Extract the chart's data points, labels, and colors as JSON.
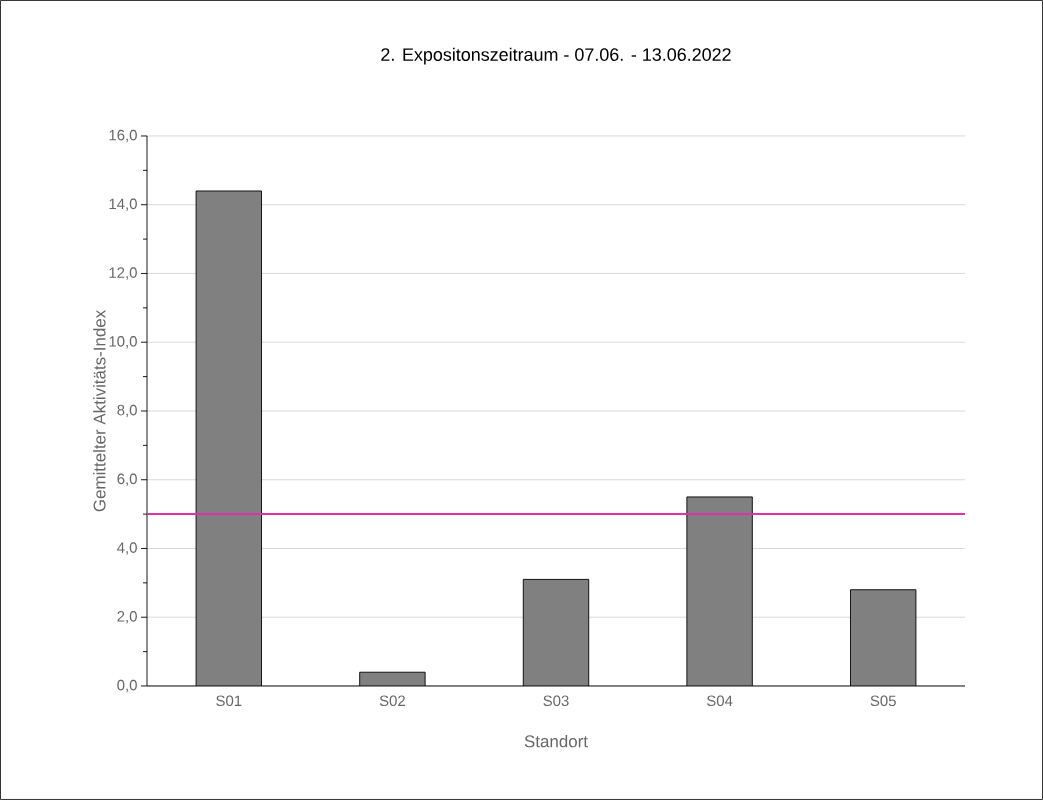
{
  "chart_data": {
    "type": "bar",
    "title": "2. Expositonszeitraum -  07.06. - 13.06.2022",
    "xlabel": "Standort",
    "ylabel": "Gemittelter Aktivitäts-Index",
    "categories": [
      "S01",
      "S02",
      "S03",
      "S04",
      "S05"
    ],
    "values": [
      14.4,
      0.4,
      3.1,
      5.5,
      2.8
    ],
    "color": "#808080",
    "ylim": [
      0,
      16
    ],
    "yticks": [
      {
        "value": 0,
        "label": "0,0"
      },
      {
        "value": 2,
        "label": "2,0"
      },
      {
        "value": 4,
        "label": "4,0"
      },
      {
        "value": 6,
        "label": "6,0"
      },
      {
        "value": 8,
        "label": "8,0"
      },
      {
        "value": 10,
        "label": "10,0"
      },
      {
        "value": 12,
        "label": "12,0"
      },
      {
        "value": 14,
        "label": "14,0"
      },
      {
        "value": 16,
        "label": "16,0"
      }
    ],
    "ref_lines": [
      {
        "axis": "y",
        "value": 5,
        "color": "#e030b0"
      }
    ],
    "grid": "y"
  }
}
